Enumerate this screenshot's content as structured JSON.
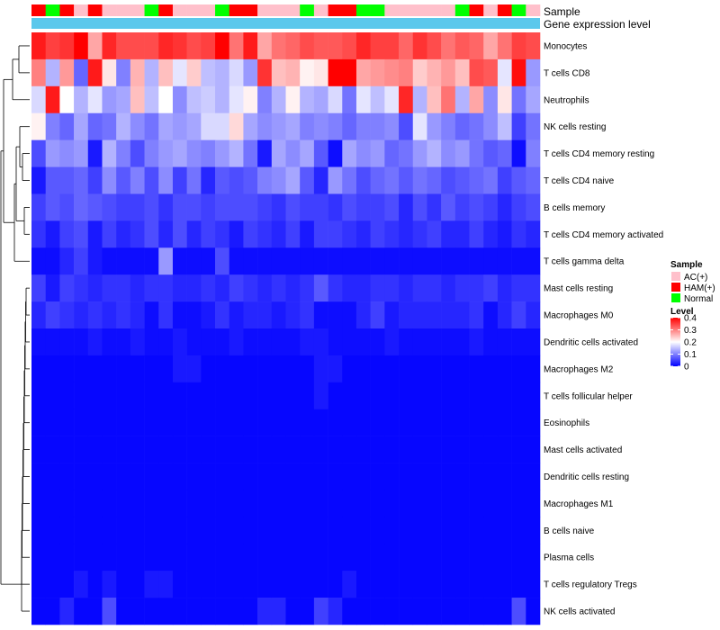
{
  "chart_data": {
    "type": "heatmap",
    "annotation_rows": [
      "Sample",
      "Gene expression level"
    ],
    "sample_groups": [
      "HAM",
      "NOR",
      "HAM",
      "AC",
      "HAM",
      "AC",
      "AC",
      "AC",
      "NOR",
      "HAM",
      "AC",
      "AC",
      "AC",
      "NOR",
      "HAM",
      "HAM",
      "AC",
      "AC",
      "AC",
      "NOR",
      "AC",
      "HAM",
      "HAM",
      "NOR",
      "NOR",
      "AC",
      "AC",
      "AC",
      "AC",
      "AC",
      "NOR",
      "HAM",
      "AC",
      "HAM",
      "NOR",
      "AC"
    ],
    "rows": [
      {
        "name": "Monocytes",
        "values": [
          0.38,
          0.35,
          0.36,
          0.42,
          0.27,
          0.37,
          0.34,
          0.34,
          0.34,
          0.37,
          0.36,
          0.34,
          0.35,
          0.42,
          0.31,
          0.38,
          0.27,
          0.31,
          0.32,
          0.34,
          0.33,
          0.33,
          0.34,
          0.37,
          0.35,
          0.35,
          0.32,
          0.36,
          0.34,
          0.31,
          0.33,
          0.32,
          0.27,
          0.31,
          0.35,
          0.34
        ]
      },
      {
        "name": "T cells CD8",
        "values": [
          0.3,
          0.14,
          0.28,
          0.08,
          0.38,
          0.22,
          0.1,
          0.26,
          0.14,
          0.25,
          0.18,
          0.24,
          0.15,
          0.14,
          0.17,
          0.12,
          0.36,
          0.25,
          0.26,
          0.21,
          0.22,
          0.4,
          0.4,
          0.27,
          0.28,
          0.29,
          0.3,
          0.24,
          0.26,
          0.28,
          0.25,
          0.34,
          0.33,
          0.18,
          0.39,
          0.12
        ]
      },
      {
        "name": "Neutrophils",
        "values": [
          0.17,
          0.38,
          0.2,
          0.14,
          0.18,
          0.12,
          0.13,
          0.25,
          0.15,
          0.2,
          0.11,
          0.15,
          0.16,
          0.14,
          0.18,
          0.21,
          0.1,
          0.14,
          0.21,
          0.14,
          0.13,
          0.17,
          0.09,
          0.18,
          0.15,
          0.18,
          0.37,
          0.14,
          0.25,
          0.31,
          0.14,
          0.27,
          0.11,
          0.22,
          0.09,
          0.13
        ]
      },
      {
        "name": "NK cells resting",
        "values": [
          0.21,
          0.1,
          0.08,
          0.13,
          0.08,
          0.09,
          0.14,
          0.11,
          0.09,
          0.13,
          0.12,
          0.13,
          0.17,
          0.17,
          0.23,
          0.13,
          0.11,
          0.12,
          0.13,
          0.1,
          0.11,
          0.1,
          0.08,
          0.1,
          0.1,
          0.11,
          0.06,
          0.18,
          0.12,
          0.1,
          0.08,
          0.09,
          0.11,
          0.15,
          0.05,
          0.09
        ]
      },
      {
        "name": "T cells CD4 memory resting",
        "values": [
          0.06,
          0.12,
          0.11,
          0.12,
          0.02,
          0.14,
          0.1,
          0.06,
          0.1,
          0.12,
          0.13,
          0.11,
          0.1,
          0.12,
          0.14,
          0.09,
          0.02,
          0.13,
          0.11,
          0.13,
          0.07,
          0.01,
          0.13,
          0.11,
          0.12,
          0.08,
          0.09,
          0.12,
          0.14,
          0.11,
          0.12,
          0.09,
          0.07,
          0.08,
          0.01,
          0.1
        ]
      },
      {
        "name": "T cells CD4 naive",
        "values": [
          0.02,
          0.07,
          0.07,
          0.08,
          0.05,
          0.11,
          0.07,
          0.1,
          0.06,
          0.11,
          0.05,
          0.09,
          0.03,
          0.07,
          0.06,
          0.07,
          0.1,
          0.11,
          0.13,
          0.07,
          0.03,
          0.12,
          0.09,
          0.06,
          0.08,
          0.09,
          0.07,
          0.09,
          0.08,
          0.06,
          0.07,
          0.08,
          0.09,
          0.05,
          0.07,
          0.08
        ]
      },
      {
        "name": "B cells memory",
        "values": [
          0.05,
          0.07,
          0.06,
          0.08,
          0.07,
          0.06,
          0.05,
          0.05,
          0.06,
          0.04,
          0.06,
          0.06,
          0.05,
          0.06,
          0.06,
          0.06,
          0.05,
          0.04,
          0.06,
          0.05,
          0.05,
          0.04,
          0.06,
          0.05,
          0.05,
          0.06,
          0.03,
          0.06,
          0.04,
          0.07,
          0.05,
          0.06,
          0.05,
          0.03,
          0.05,
          0.06
        ]
      },
      {
        "name": "T cells CD4 memory activated",
        "values": [
          0.04,
          0.02,
          0.05,
          0.06,
          0.02,
          0.05,
          0.03,
          0.04,
          0.06,
          0.03,
          0.06,
          0.03,
          0.05,
          0.04,
          0.02,
          0.05,
          0.04,
          0.03,
          0.05,
          0.02,
          0.05,
          0.05,
          0.04,
          0.03,
          0.05,
          0.04,
          0.03,
          0.04,
          0.05,
          0.03,
          0.03,
          0.05,
          0.03,
          0.02,
          0.04,
          0.03
        ]
      },
      {
        "name": "T cells gamma delta",
        "values": [
          0.01,
          0.01,
          0.03,
          0.05,
          0.02,
          0.01,
          0.01,
          0.01,
          0.01,
          0.12,
          0.01,
          0.01,
          0.01,
          0.06,
          0.01,
          0.01,
          0.01,
          0.01,
          0.01,
          0.01,
          0.01,
          0.01,
          0.01,
          0.01,
          0.01,
          0.01,
          0.01,
          0.01,
          0.01,
          0.01,
          0.01,
          0.01,
          0.01,
          0.01,
          0.01,
          0.01
        ]
      },
      {
        "name": "Mast cells resting",
        "values": [
          0.05,
          0.02,
          0.05,
          0.04,
          0.03,
          0.04,
          0.04,
          0.03,
          0.04,
          0.04,
          0.03,
          0.03,
          0.04,
          0.03,
          0.05,
          0.04,
          0.03,
          0.04,
          0.03,
          0.04,
          0.07,
          0.04,
          0.03,
          0.03,
          0.04,
          0.04,
          0.03,
          0.04,
          0.04,
          0.03,
          0.04,
          0.04,
          0.05,
          0.03,
          0.04,
          0.04
        ]
      },
      {
        "name": "Macrophages M0",
        "values": [
          0.03,
          0.05,
          0.04,
          0.03,
          0.04,
          0.03,
          0.04,
          0.03,
          0.01,
          0.04,
          0.01,
          0.01,
          0.02,
          0.04,
          0.02,
          0.03,
          0.03,
          0.02,
          0.03,
          0.04,
          0.01,
          0.01,
          0.01,
          0.03,
          0.05,
          0.02,
          0.03,
          0.03,
          0.03,
          0.03,
          0.03,
          0.04,
          0.01,
          0.03,
          0.05,
          0.03
        ]
      },
      {
        "name": "Dendritic cells activated",
        "values": [
          0.01,
          0.01,
          0.01,
          0.01,
          0.02,
          0.01,
          0.01,
          0.02,
          0.01,
          0.01,
          0.02,
          0.01,
          0.01,
          0.01,
          0.02,
          0.01,
          0.01,
          0.01,
          0.01,
          0.02,
          0.02,
          0.01,
          0.01,
          0.01,
          0.01,
          0.02,
          0.01,
          0.01,
          0.01,
          0.01,
          0.01,
          0.02,
          0.01,
          0.01,
          0.01,
          0.01
        ]
      },
      {
        "name": "Macrophages M2",
        "values": [
          0.005,
          0.005,
          0.005,
          0.005,
          0.005,
          0.005,
          0.005,
          0.005,
          0.005,
          0.005,
          0.02,
          0.02,
          0.005,
          0.005,
          0.005,
          0.005,
          0.005,
          0.005,
          0.005,
          0.005,
          0.02,
          0.02,
          0.005,
          0.005,
          0.005,
          0.005,
          0.005,
          0.005,
          0.005,
          0.005,
          0.005,
          0.005,
          0.005,
          0.005,
          0.005,
          0.005
        ]
      },
      {
        "name": "T cells follicular helper",
        "values": [
          0.005,
          0.005,
          0.005,
          0.005,
          0.005,
          0.005,
          0.005,
          0.005,
          0.005,
          0.005,
          0.005,
          0.005,
          0.005,
          0.005,
          0.005,
          0.005,
          0.005,
          0.005,
          0.005,
          0.005,
          0.02,
          0.005,
          0.005,
          0.005,
          0.005,
          0.005,
          0.005,
          0.005,
          0.005,
          0.005,
          0.005,
          0.005,
          0.005,
          0.005,
          0.005,
          0.005
        ]
      },
      {
        "name": "Eosinophils",
        "values": [
          0.005,
          0.005,
          0.005,
          0.005,
          0.005,
          0.005,
          0.005,
          0.005,
          0.005,
          0.005,
          0.005,
          0.005,
          0.005,
          0.005,
          0.005,
          0.005,
          0.005,
          0.005,
          0.005,
          0.005,
          0.005,
          0.005,
          0.005,
          0.005,
          0.005,
          0.005,
          0.005,
          0.005,
          0.005,
          0.005,
          0.005,
          0.005,
          0.005,
          0.005,
          0.005,
          0.005
        ]
      },
      {
        "name": "Mast cells activated",
        "values": [
          0.005,
          0.005,
          0.005,
          0.005,
          0.005,
          0.005,
          0.005,
          0.005,
          0.005,
          0.005,
          0.005,
          0.005,
          0.005,
          0.005,
          0.005,
          0.005,
          0.005,
          0.005,
          0.005,
          0.005,
          0.005,
          0.005,
          0.005,
          0.005,
          0.005,
          0.005,
          0.005,
          0.005,
          0.005,
          0.005,
          0.005,
          0.005,
          0.005,
          0.005,
          0.005,
          0.005
        ]
      },
      {
        "name": "Dendritic cells resting",
        "values": [
          0.005,
          0.005,
          0.005,
          0.005,
          0.005,
          0.005,
          0.005,
          0.005,
          0.005,
          0.005,
          0.005,
          0.005,
          0.005,
          0.005,
          0.005,
          0.005,
          0.005,
          0.005,
          0.005,
          0.005,
          0.005,
          0.005,
          0.005,
          0.005,
          0.005,
          0.005,
          0.005,
          0.005,
          0.005,
          0.005,
          0.005,
          0.005,
          0.005,
          0.005,
          0.005,
          0.005
        ]
      },
      {
        "name": "Macrophages M1",
        "values": [
          0.005,
          0.005,
          0.005,
          0.005,
          0.005,
          0.005,
          0.005,
          0.005,
          0.005,
          0.005,
          0.005,
          0.005,
          0.005,
          0.005,
          0.005,
          0.005,
          0.005,
          0.005,
          0.005,
          0.005,
          0.005,
          0.005,
          0.005,
          0.005,
          0.005,
          0.005,
          0.005,
          0.005,
          0.005,
          0.005,
          0.005,
          0.005,
          0.005,
          0.005,
          0.005,
          0.005
        ]
      },
      {
        "name": "B cells naive",
        "values": [
          0.005,
          0.005,
          0.005,
          0.005,
          0.005,
          0.005,
          0.005,
          0.005,
          0.005,
          0.005,
          0.005,
          0.005,
          0.005,
          0.005,
          0.005,
          0.005,
          0.005,
          0.005,
          0.005,
          0.005,
          0.005,
          0.005,
          0.005,
          0.005,
          0.005,
          0.005,
          0.005,
          0.005,
          0.005,
          0.005,
          0.005,
          0.005,
          0.005,
          0.005,
          0.005,
          0.005
        ]
      },
      {
        "name": "Plasma cells",
        "values": [
          0.005,
          0.005,
          0.005,
          0.005,
          0.005,
          0.005,
          0.005,
          0.005,
          0.005,
          0.005,
          0.005,
          0.005,
          0.005,
          0.005,
          0.005,
          0.005,
          0.005,
          0.005,
          0.005,
          0.005,
          0.005,
          0.005,
          0.005,
          0.005,
          0.005,
          0.005,
          0.005,
          0.005,
          0.005,
          0.005,
          0.005,
          0.005,
          0.005,
          0.005,
          0.005,
          0.005
        ]
      },
      {
        "name": "T cells regulatory  Tregs",
        "values": [
          0.005,
          0.005,
          0.005,
          0.02,
          0.005,
          0.02,
          0.005,
          0.005,
          0.02,
          0.02,
          0.005,
          0.005,
          0.005,
          0.005,
          0.005,
          0.005,
          0.005,
          0.005,
          0.005,
          0.005,
          0.005,
          0.005,
          0.02,
          0.005,
          0.005,
          0.005,
          0.005,
          0.005,
          0.005,
          0.005,
          0.005,
          0.005,
          0.005,
          0.005,
          0.005,
          0.005
        ]
      },
      {
        "name": "NK cells activated",
        "values": [
          0.005,
          0.005,
          0.03,
          0.005,
          0.005,
          0.06,
          0.005,
          0.005,
          0.005,
          0.005,
          0.005,
          0.005,
          0.005,
          0.005,
          0.005,
          0.005,
          0.03,
          0.03,
          0.005,
          0.005,
          0.05,
          0.03,
          0.005,
          0.005,
          0.005,
          0.005,
          0.005,
          0.005,
          0.005,
          0.005,
          0.005,
          0.005,
          0.005,
          0.005,
          0.06,
          0.005
        ]
      }
    ],
    "color_scale": {
      "title": "Level",
      "ticks": [
        "0.4",
        "0.3",
        "0.2",
        "0.1",
        "0"
      ],
      "min": 0,
      "mid": 0.2,
      "max": 0.4,
      "low_color": "#0000ff",
      "mid_color": "#ffffff",
      "high_color": "#ff0000"
    },
    "sample_legend": {
      "title": "Sample",
      "items": [
        {
          "key": "AC",
          "label": "AC(+)",
          "color": "#ffc0cb"
        },
        {
          "key": "HAM",
          "label": "HAM(+)",
          "color": "#ff0000"
        },
        {
          "key": "NOR",
          "label": "Normal",
          "color": "#00ff00"
        }
      ]
    },
    "expression_annotation_color": "#5bc8ec"
  }
}
